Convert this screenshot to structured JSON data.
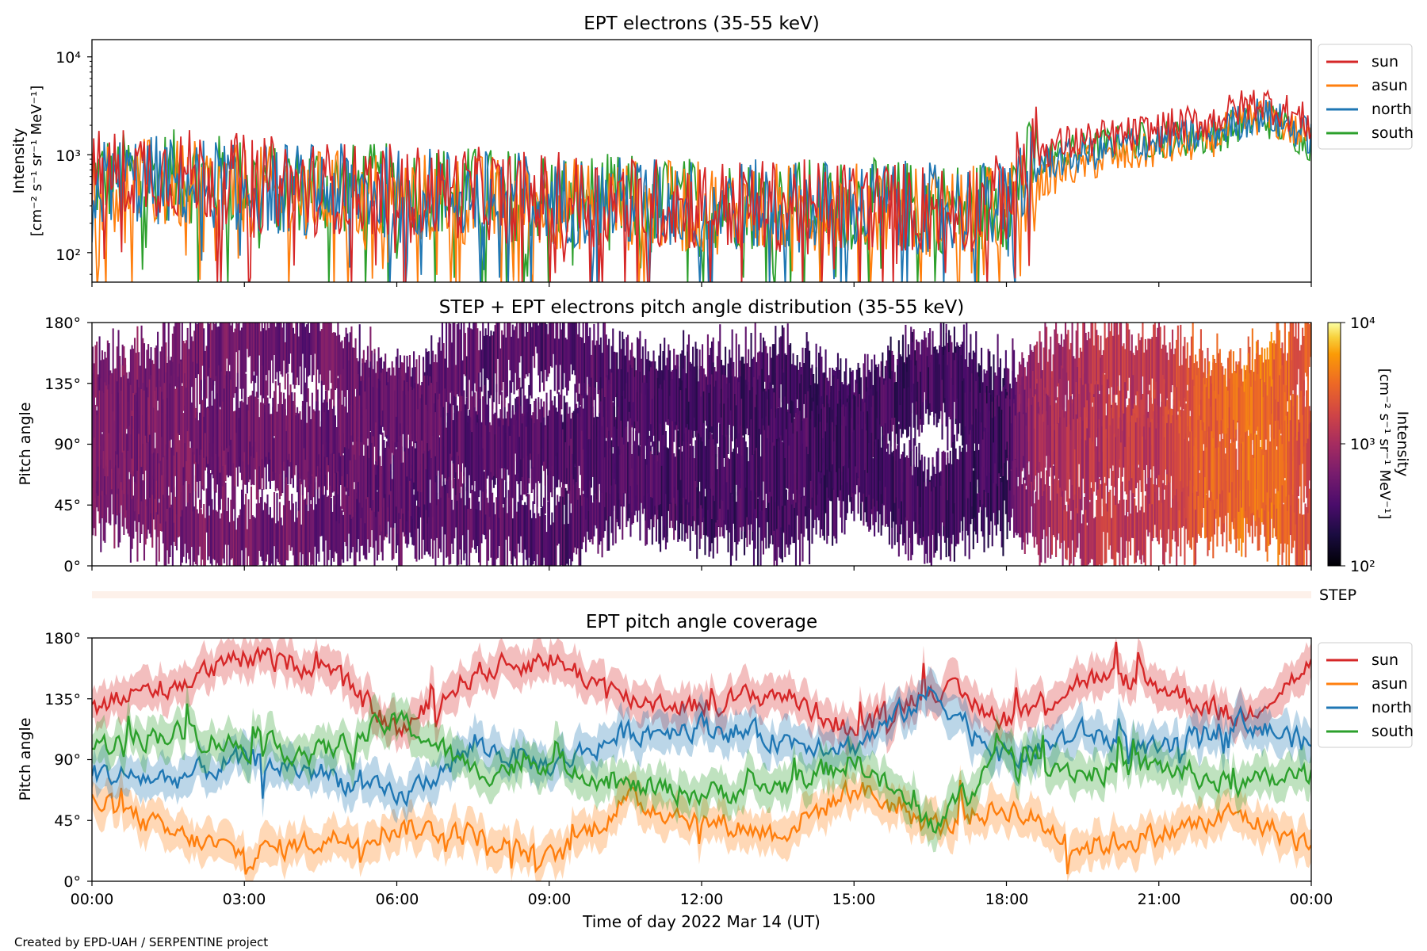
{
  "figure": {
    "credit": "Created by EPD-UAH / SERPENTINE project",
    "xlabel": "Time of day 2022 Mar 14 (UT)",
    "xticks": [
      "00:00",
      "03:00",
      "06:00",
      "09:00",
      "12:00",
      "15:00",
      "18:00",
      "21:00",
      "00:00"
    ]
  },
  "colors": {
    "sun": "#d62728",
    "asun": "#ff7f0e",
    "north": "#1f77b4",
    "south": "#2ca02c",
    "step_band": "#fdf1ea"
  },
  "step_label": "STEP",
  "chart_data": [
    {
      "type": "line",
      "title": "EPT electrons (35-55 keV)",
      "ylabel_line1": "Intensity",
      "ylabel_line2": "[cm⁻² s⁻¹ sr⁻¹ MeV⁻¹]",
      "yscale": "log",
      "ylim": [
        50,
        15000
      ],
      "yticks": [
        "10²",
        "10³",
        "10⁴"
      ],
      "xlim_hours": [
        0,
        24
      ],
      "legend": {
        "placement": "outside-right-top",
        "entries": [
          "sun",
          "asun",
          "north",
          "south"
        ]
      },
      "series_profile_hours": [
        0,
        1,
        3,
        5,
        7,
        9,
        11,
        13,
        15,
        17,
        18,
        18.6,
        19.5,
        20.5,
        22,
        23,
        24
      ],
      "series": [
        {
          "name": "sun",
          "median_intensity": [
            600,
            700,
            550,
            450,
            420,
            360,
            320,
            300,
            300,
            280,
            350,
            1100,
            1400,
            1600,
            2200,
            3500,
            2000
          ]
        },
        {
          "name": "asun",
          "median_intensity": [
            450,
            500,
            420,
            380,
            350,
            320,
            300,
            280,
            280,
            260,
            270,
            500,
            800,
            1000,
            1400,
            2500,
            1400
          ]
        },
        {
          "name": "north",
          "median_intensity": [
            500,
            550,
            480,
            430,
            400,
            350,
            320,
            300,
            300,
            280,
            300,
            800,
            1000,
            1300,
            1600,
            2600,
            1500
          ]
        },
        {
          "name": "south",
          "median_intensity": [
            550,
            650,
            520,
            450,
            430,
            370,
            330,
            310,
            310,
            290,
            320,
            900,
            1100,
            1400,
            1500,
            2400,
            1300
          ]
        }
      ]
    },
    {
      "type": "heatmap",
      "title": "STEP + EPT electrons pitch angle distribution (35-55 keV)",
      "ylabel": "Pitch angle",
      "yticks": [
        "0°",
        "45°",
        "90°",
        "135°",
        "180°"
      ],
      "ylim_deg": [
        0,
        180
      ],
      "xlim_hours": [
        0,
        24
      ],
      "colorbar": {
        "label_line1": "Intensity",
        "label_line2": "[cm⁻² s⁻¹ sr⁻¹ MeV⁻¹]",
        "scale": "log",
        "range": [
          100,
          10000
        ],
        "ticks": [
          "10²",
          "10³",
          "10⁴"
        ],
        "colormap": "inferno"
      },
      "intensity_profile_hours": [
        0,
        3,
        6,
        9,
        12,
        15,
        18,
        18.6,
        20,
        21,
        22,
        23,
        24
      ],
      "intensity_profile": [
        600,
        520,
        420,
        360,
        310,
        290,
        280,
        1000,
        1300,
        1500,
        2600,
        3500,
        2000
      ]
    },
    {
      "type": "line",
      "title": "EPT pitch angle coverage",
      "ylabel": "Pitch angle",
      "yticks": [
        "0°",
        "45°",
        "90°",
        "135°",
        "180°"
      ],
      "ylim_deg": [
        0,
        180
      ],
      "xlim_hours": [
        0,
        24
      ],
      "legend": {
        "placement": "outside-right-top",
        "entries": [
          "sun",
          "asun",
          "north",
          "south"
        ]
      },
      "series_profile_hours": [
        0,
        1.5,
        3,
        4.5,
        6,
        7.5,
        9,
        10.5,
        12,
        13.5,
        15,
        16.5,
        18,
        19.5,
        21,
        22.5,
        24
      ],
      "series": [
        {
          "name": "sun",
          "pitch_angle_deg": [
            130,
            145,
            165,
            160,
            110,
            155,
            165,
            135,
            130,
            140,
            110,
            145,
            120,
            150,
            145,
            120,
            160
          ]
        },
        {
          "name": "asun",
          "pitch_angle_deg": [
            60,
            35,
            20,
            30,
            40,
            35,
            15,
            60,
            45,
            35,
            70,
            40,
            55,
            25,
            35,
            50,
            25
          ]
        },
        {
          "name": "north",
          "pitch_angle_deg": [
            80,
            75,
            90,
            80,
            60,
            100,
            85,
            110,
            115,
            105,
            100,
            140,
            90,
            110,
            95,
            120,
            100
          ]
        },
        {
          "name": "south",
          "pitch_angle_deg": [
            100,
            110,
            100,
            95,
            120,
            80,
            90,
            70,
            65,
            70,
            90,
            40,
            100,
            80,
            85,
            70,
            80
          ]
        }
      ]
    }
  ]
}
